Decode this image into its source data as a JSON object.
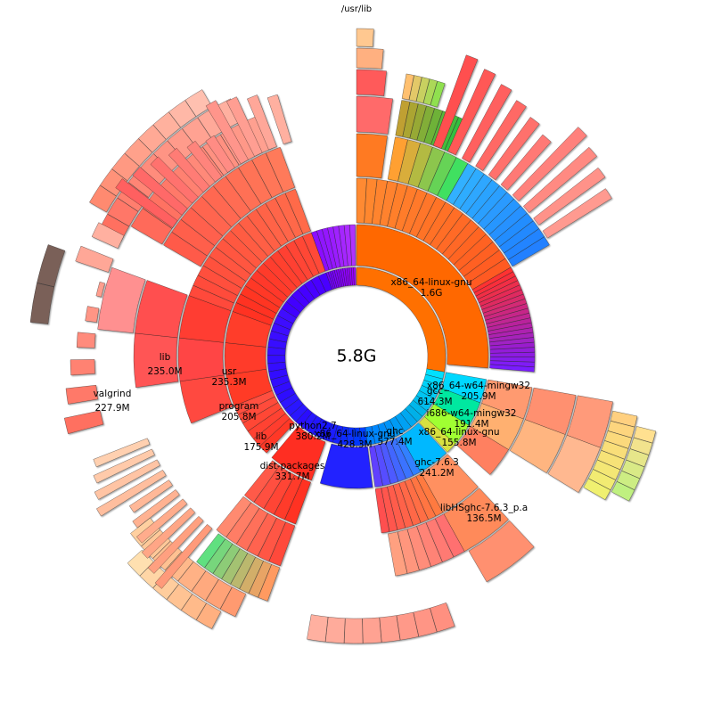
{
  "window": {
    "root_path": "/usr/lib",
    "total": "5.8G"
  },
  "chart_data": {
    "type": "sunburst",
    "root": "/usr/lib",
    "total_size": "5.8G",
    "start_angle_deg": 0,
    "direction": "clockwise",
    "labeled_nodes": [
      {
        "name": "x86_64-linux-gnu",
        "size": "1.6G",
        "depth": 1,
        "parent": "/usr/lib"
      },
      {
        "name": "gcc",
        "size": "614.3M",
        "depth": 1,
        "parent": "/usr/lib"
      },
      {
        "name": "ghc",
        "size": "577.4M",
        "depth": 1,
        "parent": "/usr/lib"
      },
      {
        "name": "x86_64-linux-gnu",
        "size": "428.3M",
        "depth": 1,
        "parent": "/usr/lib"
      },
      {
        "name": "python2.7",
        "size": "380.2M",
        "depth": 1,
        "parent": "/usr/lib"
      },
      {
        "name": "x86_64-w64-mingw32",
        "size": "205.9M",
        "depth": 2,
        "parent": "gcc"
      },
      {
        "name": "i686-w64-mingw32",
        "size": "191.4M",
        "depth": 2,
        "parent": "gcc"
      },
      {
        "name": "x86_64-linux-gnu",
        "size": "155.8M",
        "depth": 2,
        "parent": "gcc"
      },
      {
        "name": "ghc-7.6.3",
        "size": "241.2M",
        "depth": 2,
        "parent": "ghc"
      },
      {
        "name": "libHSghc-7.6.3_p.a",
        "size": "136.5M",
        "depth": 3,
        "parent": "ghc-7.6.3"
      },
      {
        "name": "dist-packages",
        "size": "331.7M",
        "depth": 2,
        "parent": "python2.7"
      },
      {
        "name": "lib",
        "size": "175.9M",
        "depth": 2,
        "parent": "/usr/lib"
      },
      {
        "name": "program",
        "size": "205.8M",
        "depth": 2,
        "parent": "/usr/lib"
      },
      {
        "name": "usr",
        "size": "235.3M",
        "depth": 2,
        "parent": "/usr/lib"
      },
      {
        "name": "lib",
        "size": "235.0M",
        "depth": 3,
        "parent": "usr"
      },
      {
        "name": "valgrind",
        "size": "227.9M",
        "depth": 4,
        "parent": "lib"
      }
    ],
    "labels": [
      {
        "name": "x86_64-linux-gnu",
        "size": "1.6G"
      },
      {
        "name": "gcc",
        "size": "614.3M"
      },
      {
        "name": "x86_64-w64-mingw32",
        "size": "205.9M"
      },
      {
        "name": "i686-w64-mingw32",
        "size": "191.4M"
      },
      {
        "name": "x86_64-linux-gnu",
        "size": "155.8M"
      },
      {
        "name": "ghc",
        "size": "577.4M"
      },
      {
        "name": "ghc-7.6.3",
        "size": "241.2M"
      },
      {
        "name": "libHSghc-7.6.3_p.a",
        "size": "136.5M"
      },
      {
        "name": "x86_64-linux-gnu",
        "size": "428.3M"
      },
      {
        "name": "python2.7",
        "size": "380.2M"
      },
      {
        "name": "dist-packages",
        "size": "331.7M"
      },
      {
        "name": "lib",
        "size": "175.9M"
      },
      {
        "name": "program",
        "size": "205.8M"
      },
      {
        "name": "usr",
        "size": "235.3M"
      },
      {
        "name": "lib",
        "size": "235.0M"
      },
      {
        "name": "valgrind",
        "size": "227.9M"
      }
    ],
    "colors": {
      "orange": "#ff6a00",
      "cyan": "#00c8f0",
      "blue": "#1414ff",
      "violet": "#7a00ff",
      "red": "#ff3b30",
      "salmon": "#ff8a6e",
      "pink": "#ff9c9c",
      "green": "#33e04a",
      "yellow": "#f2e860",
      "peach": "#ffc27a",
      "dark": "#7a6058"
    }
  }
}
